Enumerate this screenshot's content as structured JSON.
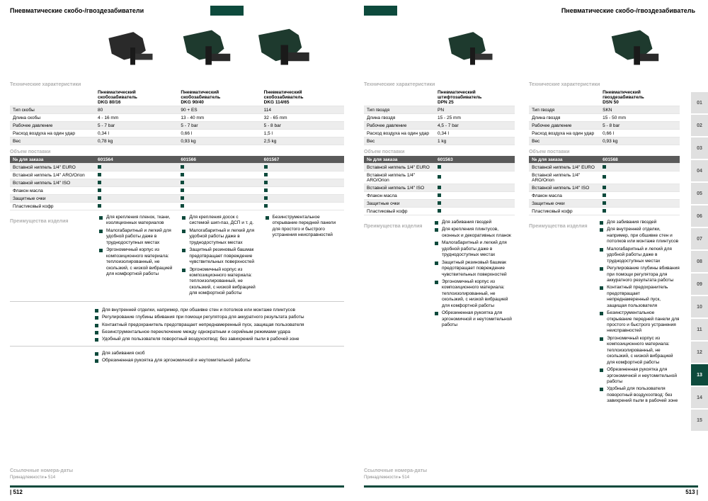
{
  "left": {
    "title": "Пневматические скобо-/гвоздезабиватели",
    "products": [
      {
        "name": "Пневматический\nскобозабиватель\nDKG 80/16"
      },
      {
        "name": "Пневматический\nскобозабиватель\nDKG 90/40"
      },
      {
        "name": "Пневматический\nскобозабиватель\nDKG 114/65"
      }
    ],
    "sections": {
      "tech": "Технические характеристики",
      "scope": "Объем поставки",
      "adv": "Преимущества изделия",
      "ref": "Ссылочные номера-даты"
    },
    "specs": [
      {
        "label": "Тип скобы",
        "vals": [
          "80",
          "90 + ES",
          "114"
        ],
        "grey": true
      },
      {
        "label": "Длина скобы",
        "vals": [
          "4 - 16 mm",
          "13 - 40 mm",
          "32 - 65 mm"
        ],
        "grey": false
      },
      {
        "label": "Рабочее давление",
        "vals": [
          "5 - 7 bar",
          "5 - 7 bar",
          "5 - 8 bar"
        ],
        "grey": true
      },
      {
        "label": "Расход воздуха на один удар",
        "vals": [
          "0,34 l",
          "0,66 l",
          "1,5 l"
        ],
        "grey": false
      },
      {
        "label": "Вес",
        "vals": [
          "0,78 kg",
          "0,93 kg",
          "2,5 kg"
        ],
        "grey": true
      }
    ],
    "order_header": "№ для заказа",
    "order_nums": [
      "601564",
      "601566",
      "601567"
    ],
    "scope": [
      {
        "label": "Вставной ниппель 1/4\" EURO",
        "vals": [
          true,
          true,
          true
        ],
        "grey": true
      },
      {
        "label": "Вставной ниппель 1/4\" ARO/Orion",
        "vals": [
          true,
          true,
          true
        ],
        "grey": false
      },
      {
        "label": "Вставной ниппель 1/4\" ISO",
        "vals": [
          true,
          true,
          true
        ],
        "grey": true
      },
      {
        "label": "Флакон масла",
        "vals": [
          true,
          true,
          true
        ],
        "grey": false
      },
      {
        "label": "Защитные очки",
        "vals": [
          true,
          true,
          true
        ],
        "grey": true
      },
      {
        "label": "Пластиковый кофр",
        "vals": [
          true,
          true,
          true
        ],
        "grey": false
      }
    ],
    "adv_cols": [
      [
        "Для крепления пленок, ткани, изоляционных материалов",
        "Малогабаритный и легкий для удобной работы даже в труднодоступных местах",
        "Эргономичный корпус из композиционного материала: теплоизолированный, не скользкий, с низкой вибрацией для комфортной работы"
      ],
      [
        "Для крепления досок с системой шип-паз, ДСП и т. д.",
        "Малогабаритный и легкий для удобной работы даже в труднодоступных местах",
        "Защитный резиновый башмак предотвращает повреждение чувствительных поверхностей",
        "Эргономичный корпус из композиционного материала: теплоизолированный, не скользкий, с низкой вибрацией для комфортной работы"
      ],
      [
        "Безинструментальное открывание передней панели для простого и быстрого устранения неисправностей"
      ]
    ],
    "adv_wide": [
      "Для внутренней отделки, например, при обшивке стен и потолков или монтаже плинтусов",
      "Регулирование глубины вбивания при помощи регулятора для аккуратного результата работы",
      "Контактный предохранитель предотвращает непреднамеренный пуск, защищая пользователя",
      "Безинструментальное переключение между однократным и серийным режимами удара",
      "Удобный для пользователя поворотный воздухоотвод: без завихрений пыли в рабочей зоне"
    ],
    "adv_single": [
      "Для забивания скоб",
      "Обрезиненная рукоятка для эргономичной и неутомительной работы"
    ],
    "ref": "Принадлежности ▸ 514",
    "page_num": "| 512"
  },
  "right": {
    "title": "Пневматические скобо-/гвоздезабиватель",
    "p1": {
      "name": "Пневматический\nштифтозабиватель\nDPN 25"
    },
    "p2": {
      "name": "Пневматический\nгвоздезабиватель\nDSN 50"
    },
    "sections": {
      "tech": "Технические характеристики",
      "scope": "Объем поставки",
      "adv": "Преимущества изделия",
      "ref": "Ссылочные номера-даты"
    },
    "specs1": [
      {
        "label": "Тип гвоздя",
        "val": "PN",
        "grey": true
      },
      {
        "label": "Длина гвоздя",
        "val": "15 - 25 mm",
        "grey": false
      },
      {
        "label": "Рабочее давление",
        "val": "4,5 - 7 bar",
        "grey": true
      },
      {
        "label": "Расход воздуха на один удар",
        "val": "0,34 l",
        "grey": false
      },
      {
        "label": "Вес",
        "val": "1 kg",
        "grey": true
      }
    ],
    "specs2": [
      {
        "label": "Тип гвоздя",
        "val": "SKN",
        "grey": true
      },
      {
        "label": "Длина гвоздя",
        "val": "15 - 50 mm",
        "grey": false
      },
      {
        "label": "Рабочее давление",
        "val": "5 - 8 bar",
        "grey": true
      },
      {
        "label": "Расход воздуха на один удар",
        "val": "0,66 l",
        "grey": false
      },
      {
        "label": "Вес",
        "val": "0,93 kg",
        "grey": true
      }
    ],
    "order_header": "№ для заказа",
    "order_num1": "601563",
    "order_num2": "601568",
    "scope_labels": [
      "Вставной ниппель 1/4\" EURO",
      "Вставной ниппель 1/4\" ARO/Orion",
      "Вставной ниппель 1/4\" ISO",
      "Флакон масла",
      "Защитные очки",
      "Пластиковый кофр"
    ],
    "adv1": [
      "Для забивания гвоздей",
      "Для крепления плинтусов, оконных и декоративных планок",
      "Малогабаритный и легкий для удобной работы даже в труднодоступных местах",
      "Защитный резиновый башмак предотвращает повреждение чувствительных поверхностей",
      "Эргономичный корпус из композиционного материала: теплоизолированный, не скользкий, с низкой вибрацией для комфортной работы",
      "Обрезиненная рукоятка для эргономичной и неутомительной работы"
    ],
    "adv2": [
      "Для забивания гвоздей",
      "Для внутренней отделки, например, при обшивке стен и потолков или монтаже плинтусов",
      "Малогабаритный и легкий для удобной работы даже в труднодоступных местах",
      "Регулирование глубины вбивания при помощи регулятора для аккуратного результата работы",
      "Контактный предохранитель предотвращает непреднамеренный пуск, защищая пользователя",
      "Безинструментальное открывание передней панели для простого и быстрого устранения неисправностей",
      "Эргономичный корпус из композиционного материала: теплоизолированный, не скользкий, с низкой вибрацией для комфортной работы",
      "Обрезиненная рукоятка для эргономичной и неутомительной работы",
      "Удобный для пользователя поворотный воздухоотвод: без завихрений пыли в рабочей зоне"
    ],
    "ref": "Принадлежности ▸ 514",
    "page_num": "513 |",
    "tabs": [
      "01",
      "02",
      "03",
      "04",
      "05",
      "06",
      "07",
      "08",
      "09",
      "10",
      "11",
      "12",
      "13",
      "14",
      "15"
    ],
    "active_tab": "13"
  },
  "colors": {
    "accent": "#0d4a3c",
    "grey": "#ededed",
    "dark": "#5a5a5a"
  }
}
